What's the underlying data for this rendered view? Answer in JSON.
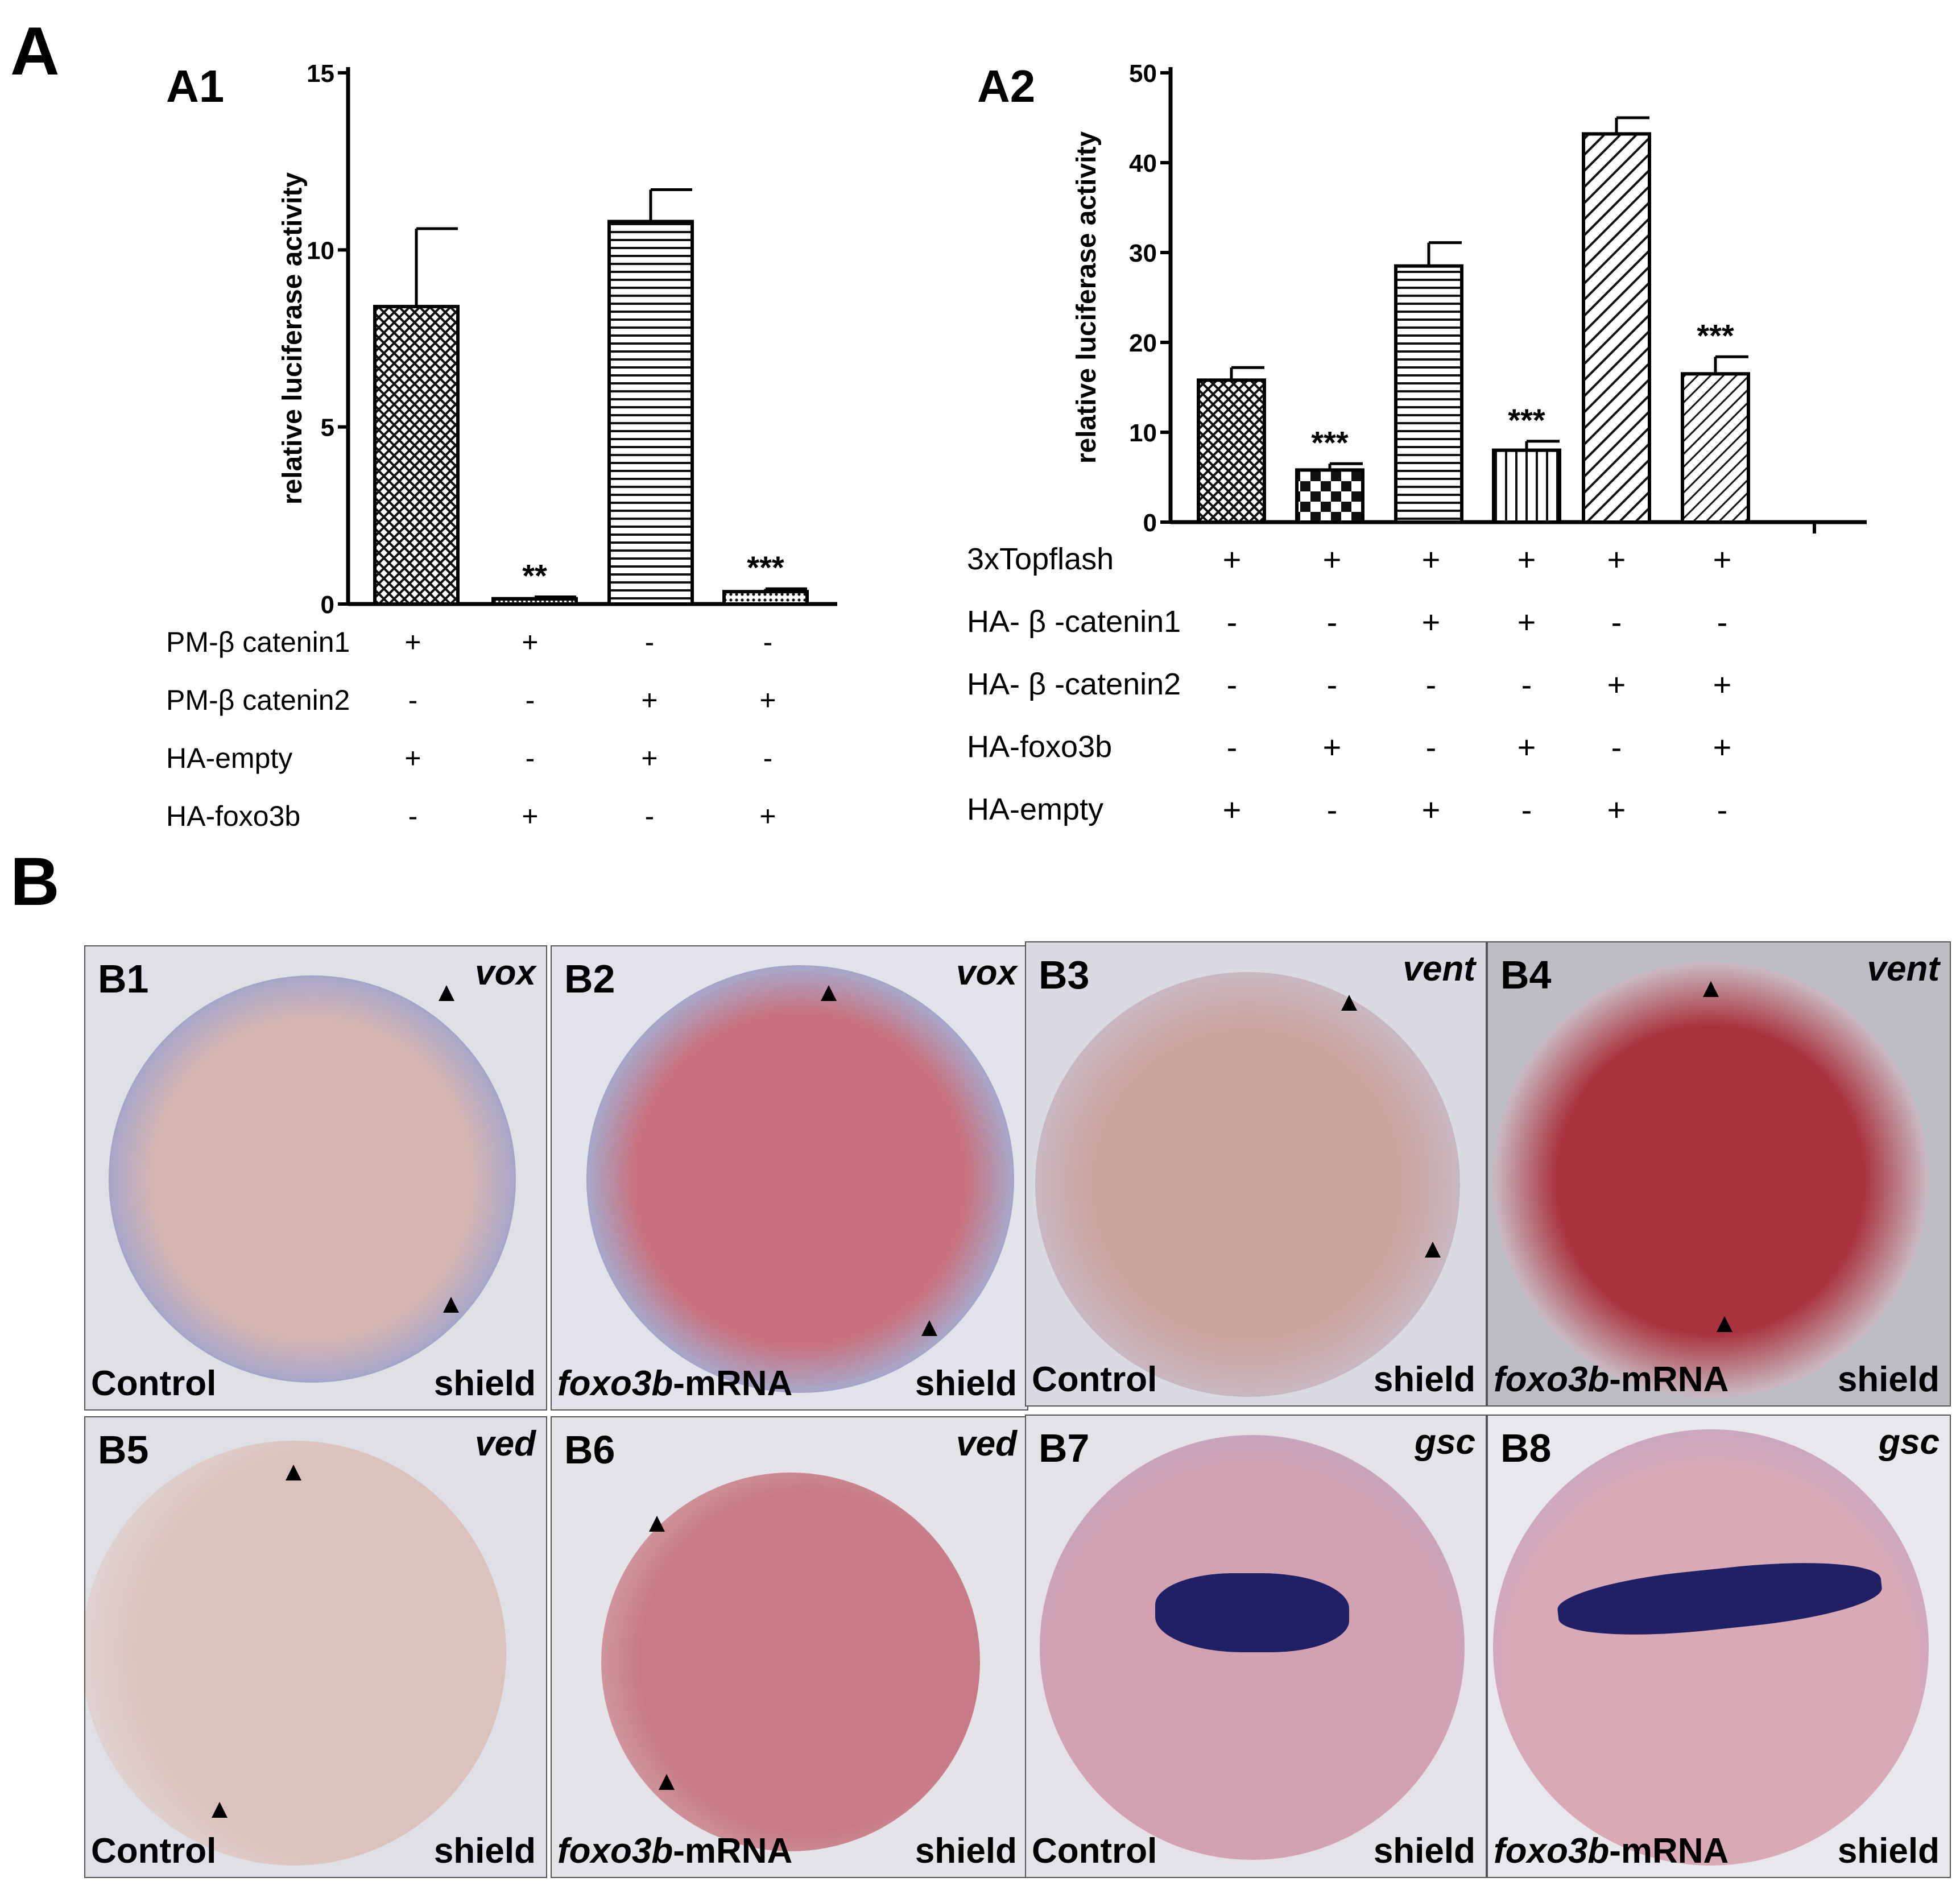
{
  "figure": {
    "section_a": "A",
    "section_b": "B"
  },
  "colors": {
    "stain": "#2c3a9a",
    "yolk": "#cf9ea0",
    "background": "#dcdde3"
  },
  "chart_data": [
    {
      "type": "bar",
      "panel_label": "A1",
      "ylabel": "relative luciferase activity",
      "ylim": [
        0,
        15
      ],
      "yticks": [
        "0",
        "5",
        "10",
        "15"
      ],
      "values": [
        8.4,
        0.15,
        10.8,
        0.35
      ],
      "errors": [
        2.2,
        0.05,
        0.9,
        0.08
      ],
      "significance": [
        "",
        "**",
        "",
        "***"
      ],
      "patterns": [
        "checker",
        "dense",
        "horizontal",
        "dots"
      ],
      "conditions": [
        {
          "label": "PM-β catenin1",
          "signs": [
            "+",
            "+",
            "-",
            "-"
          ]
        },
        {
          "label": "PM-β catenin2",
          "signs": [
            "-",
            "-",
            "+",
            "+"
          ]
        },
        {
          "label": "HA-empty",
          "signs": [
            "+",
            "-",
            "+",
            "-"
          ]
        },
        {
          "label": "HA-foxo3b",
          "signs": [
            "-",
            "+",
            "-",
            "+"
          ]
        }
      ]
    },
    {
      "type": "bar",
      "panel_label": "A2",
      "ylabel": "relative luciferase activity",
      "ylim": [
        0,
        50
      ],
      "yticks": [
        "0",
        "10",
        "20",
        "30",
        "40",
        "50"
      ],
      "values": [
        15.8,
        5.8,
        28.5,
        8.0,
        43.2,
        16.5
      ],
      "errors": [
        1.4,
        0.7,
        2.6,
        1.0,
        1.8,
        1.9
      ],
      "significance": [
        "",
        "***",
        "",
        "***",
        "",
        "***"
      ],
      "patterns": [
        "checker",
        "bigchecker",
        "horizontal",
        "vertical",
        "diag",
        "diag2"
      ],
      "conditions": [
        {
          "label": "3xTopflash",
          "signs": [
            "+",
            "+",
            "+",
            "+",
            "+",
            "+"
          ]
        },
        {
          "label": "HA- β -catenin1",
          "signs": [
            "-",
            "-",
            "+",
            "+",
            "-",
            "-"
          ]
        },
        {
          "label": "HA- β -catenin2",
          "signs": [
            "-",
            "-",
            "-",
            "-",
            "+",
            "+"
          ]
        },
        {
          "label": "HA-foxo3b",
          "signs": [
            "-",
            "+",
            "-",
            "+",
            "-",
            "+"
          ]
        },
        {
          "label": "HA-empty",
          "signs": [
            "+",
            "-",
            "+",
            "-",
            "+",
            "-"
          ]
        }
      ]
    }
  ],
  "tiles": [
    {
      "label": "B1",
      "gene": "vox",
      "condition": "Control",
      "stage": "shield"
    },
    {
      "label": "B2",
      "gene": "vox",
      "condition": "foxo3b",
      "condition_suffix": "-mRNA",
      "stage": "shield"
    },
    {
      "label": "B3",
      "gene": "vent",
      "condition": "Control",
      "stage": "shield"
    },
    {
      "label": "B4",
      "gene": "vent",
      "condition": "foxo3b",
      "condition_suffix": "-mRNA",
      "stage": "shield"
    },
    {
      "label": "B5",
      "gene": "ved",
      "condition": "Control",
      "stage": "shield"
    },
    {
      "label": "B6",
      "gene": "ved",
      "condition": "foxo3b",
      "condition_suffix": "-mRNA",
      "stage": "shield"
    },
    {
      "label": "B7",
      "gene": "gsc",
      "condition": "Control",
      "stage": "shield"
    },
    {
      "label": "B8",
      "gene": "gsc",
      "condition": "foxo3b",
      "condition_suffix": "-mRNA",
      "stage": "shield"
    }
  ]
}
